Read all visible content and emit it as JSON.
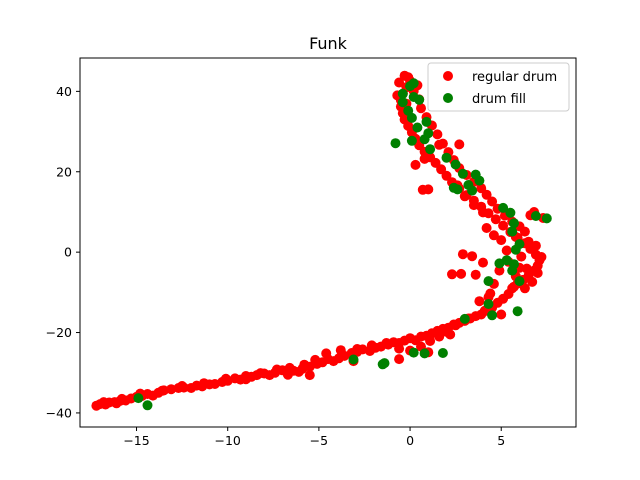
{
  "chart_data": {
    "type": "scatter",
    "title": "Funk",
    "xlabel": "",
    "ylabel": "",
    "xlim": [
      -18.1,
      9.1
    ],
    "ylim": [
      -43.5,
      48.3
    ],
    "x_ticks": [
      -15,
      -10,
      -5,
      0,
      5
    ],
    "y_ticks": [
      -40,
      -20,
      0,
      20,
      40
    ],
    "grid": false,
    "legend": {
      "position": "top-right",
      "entries": [
        "regular drum",
        "drum fill"
      ]
    },
    "series": [
      {
        "name": "regular drum",
        "color": "#ff0000",
        "points": [
          [
            -17.2,
            -38.2
          ],
          [
            -17.0,
            -37.8
          ],
          [
            -16.7,
            -37.9
          ],
          [
            -16.5,
            -37.4
          ],
          [
            -16.2,
            -37.3
          ],
          [
            -15.9,
            -37.0
          ],
          [
            -15.6,
            -36.9
          ],
          [
            -15.3,
            -36.4
          ],
          [
            -15.0,
            -36.0
          ],
          [
            -14.7,
            -35.8
          ],
          [
            -14.4,
            -35.3
          ],
          [
            -14.1,
            -35.7
          ],
          [
            -13.8,
            -35.0
          ],
          [
            -13.5,
            -34.4
          ],
          [
            -13.1,
            -34.1
          ],
          [
            -12.7,
            -33.8
          ],
          [
            -12.4,
            -33.7
          ],
          [
            -12.0,
            -33.8
          ],
          [
            -11.7,
            -33.2
          ],
          [
            -11.4,
            -33.4
          ],
          [
            -11.0,
            -32.9
          ],
          [
            -10.7,
            -32.8
          ],
          [
            -10.3,
            -32.3
          ],
          [
            -10.0,
            -32.0
          ],
          [
            -9.6,
            -31.4
          ],
          [
            -9.3,
            -31.7
          ],
          [
            -9.0,
            -30.8
          ],
          [
            -8.7,
            -31.0
          ],
          [
            -8.4,
            -30.6
          ],
          [
            -8.0,
            -30.2
          ],
          [
            -7.7,
            -30.6
          ],
          [
            -7.4,
            -30.0
          ],
          [
            -7.0,
            -29.4
          ],
          [
            -6.7,
            -30.5
          ],
          [
            -6.4,
            -29.5
          ],
          [
            -6.1,
            -29.8
          ],
          [
            -5.9,
            -29.0
          ],
          [
            -5.5,
            -28.5
          ],
          [
            -5.1,
            -27.8
          ],
          [
            -4.8,
            -27.4
          ],
          [
            -4.5,
            -26.6
          ],
          [
            -4.2,
            -27.1
          ],
          [
            -3.9,
            -26.4
          ],
          [
            -3.6,
            -25.8
          ],
          [
            -3.2,
            -25.1
          ],
          [
            -2.9,
            -24.8
          ],
          [
            -2.6,
            -24.2
          ],
          [
            -2.2,
            -24.6
          ],
          [
            -1.9,
            -23.8
          ],
          [
            -1.6,
            -23.5
          ],
          [
            -1.2,
            -23.0
          ],
          [
            -0.9,
            -22.4
          ],
          [
            -0.6,
            -22.6
          ],
          [
            -0.3,
            -22.0
          ],
          [
            0.0,
            -21.4
          ],
          [
            0.3,
            -21.9
          ],
          [
            0.6,
            -21.0
          ],
          [
            0.9,
            -20.8
          ],
          [
            1.2,
            -20.2
          ],
          [
            1.5,
            -19.6
          ],
          [
            1.8,
            -19.1
          ],
          [
            2.1,
            -18.8
          ],
          [
            2.4,
            -18.0
          ],
          [
            2.7,
            -17.6
          ],
          [
            3.0,
            -17.1
          ],
          [
            3.3,
            -16.5
          ],
          [
            3.6,
            -15.9
          ],
          [
            3.9,
            -15.5
          ],
          [
            4.2,
            -14.6
          ],
          [
            4.5,
            -13.8
          ],
          [
            4.8,
            -12.6
          ],
          [
            5.1,
            -11.6
          ],
          [
            5.4,
            -10.4
          ],
          [
            5.6,
            -9.0
          ],
          [
            5.9,
            -7.8
          ],
          [
            6.2,
            -6.9
          ],
          [
            6.5,
            -5.8
          ],
          [
            6.8,
            -4.6
          ],
          [
            7.0,
            -3.4
          ],
          [
            7.1,
            -2.0
          ],
          [
            6.9,
            -0.6
          ],
          [
            6.6,
            0.8
          ],
          [
            6.3,
            2.2
          ],
          [
            5.9,
            3.6
          ],
          [
            5.5,
            5.0
          ],
          [
            5.1,
            6.6
          ],
          [
            4.7,
            8.2
          ],
          [
            4.3,
            9.7
          ],
          [
            3.9,
            11.3
          ],
          [
            3.5,
            12.8
          ],
          [
            3.1,
            14.2
          ],
          [
            2.7,
            15.8
          ],
          [
            2.3,
            17.4
          ],
          [
            2.0,
            19.0
          ],
          [
            1.7,
            20.6
          ],
          [
            1.4,
            22.2
          ],
          [
            1.1,
            23.6
          ],
          [
            0.8,
            25.0
          ],
          [
            0.5,
            26.6
          ],
          [
            0.3,
            28.2
          ],
          [
            0.1,
            29.8
          ],
          [
            -0.1,
            31.4
          ],
          [
            -0.3,
            33.0
          ],
          [
            -0.4,
            34.6
          ],
          [
            -0.5,
            36.2
          ],
          [
            -0.5,
            37.8
          ],
          [
            -0.4,
            39.4
          ],
          [
            -0.2,
            41.0
          ],
          [
            0.0,
            42.6
          ],
          [
            -0.3,
            43.9
          ],
          [
            -0.1,
            43.5
          ],
          [
            -0.6,
            42.2
          ],
          [
            0.4,
            41.5
          ],
          [
            0.2,
            40.1
          ],
          [
            -0.7,
            39.0
          ],
          [
            0.5,
            38.0
          ],
          [
            -0.2,
            36.9
          ],
          [
            0.6,
            35.8
          ],
          [
            0.9,
            33.6
          ],
          [
            1.2,
            31.5
          ],
          [
            1.5,
            29.3
          ],
          [
            1.8,
            27.0
          ],
          [
            2.1,
            24.9
          ],
          [
            2.4,
            22.9
          ],
          [
            2.7,
            20.9
          ],
          [
            3.1,
            19.2
          ],
          [
            3.5,
            17.5
          ],
          [
            3.9,
            15.9
          ],
          [
            4.2,
            14.3
          ],
          [
            4.5,
            12.6
          ],
          [
            4.8,
            10.8
          ],
          [
            5.2,
            9.1
          ],
          [
            5.6,
            7.6
          ],
          [
            6.0,
            6.4
          ],
          [
            6.3,
            5.1
          ],
          [
            5.8,
            3.8
          ],
          [
            6.5,
            2.6
          ],
          [
            4.6,
            4.2
          ],
          [
            5.0,
            3.0
          ],
          [
            4.2,
            6.0
          ],
          [
            1.0,
            15.6
          ],
          [
            0.7,
            15.5
          ],
          [
            0.3,
            21.7
          ],
          [
            0.8,
            23.2
          ],
          [
            1.6,
            26.7
          ],
          [
            2.7,
            26.8
          ],
          [
            4.0,
            9.9
          ],
          [
            3.5,
            11.7
          ],
          [
            3.0,
            13.9
          ],
          [
            2.6,
            16.6
          ],
          [
            6.8,
            10.0
          ],
          [
            7.3,
            8.5
          ],
          [
            6.6,
            9.2
          ],
          [
            5.3,
            0.4
          ],
          [
            2.9,
            -0.5
          ],
          [
            3.4,
            -1.0
          ],
          [
            2.3,
            -5.5
          ],
          [
            3.6,
            -5.6
          ],
          [
            2.8,
            -5.4
          ],
          [
            4.0,
            -2.6
          ],
          [
            4.9,
            -4.6
          ],
          [
            6.0,
            -3.9
          ],
          [
            5.7,
            -8.6
          ],
          [
            4.4,
            -10.3
          ],
          [
            3.8,
            -12.2
          ],
          [
            4.1,
            -14.6
          ],
          [
            5.0,
            -15.5
          ],
          [
            3.2,
            -16.5
          ],
          [
            2.5,
            -18.2
          ],
          [
            2.0,
            -19.8
          ],
          [
            1.6,
            -21.0
          ],
          [
            1.1,
            -22.1
          ],
          [
            0.6,
            -23.5
          ],
          [
            0.0,
            -24.5
          ],
          [
            -0.6,
            -24.0
          ],
          [
            -1.3,
            -22.6
          ],
          [
            -2.1,
            -23.2
          ],
          [
            -2.9,
            -24.1
          ],
          [
            -3.8,
            -24.4
          ],
          [
            -4.6,
            -25.2
          ],
          [
            -5.2,
            -26.8
          ],
          [
            -5.8,
            -28.0
          ],
          [
            -6.6,
            -28.8
          ],
          [
            -7.3,
            -29.2
          ],
          [
            -8.2,
            -30.1
          ],
          [
            -9.0,
            -31.6
          ],
          [
            -10.1,
            -31.5
          ],
          [
            -11.3,
            -32.6
          ],
          [
            -12.5,
            -33.3
          ],
          [
            -13.6,
            -34.5
          ],
          [
            -14.8,
            -35.2
          ],
          [
            -15.8,
            -36.5
          ],
          [
            -16.8,
            -37.3
          ],
          [
            -16.1,
            -37.6
          ],
          [
            -5.5,
            -30.6
          ],
          [
            -3.1,
            -27.1
          ],
          [
            -0.6,
            -26.6
          ],
          [
            1.0,
            -24.9
          ],
          [
            2.2,
            -20.5
          ],
          [
            4.3,
            -11.2
          ],
          [
            6.3,
            -9.0
          ],
          [
            6.7,
            -7.4
          ],
          [
            7.0,
            -5.2
          ],
          [
            7.2,
            -1.2
          ],
          [
            6.9,
            1.6
          ],
          [
            6.1,
            -1.1
          ],
          [
            5.4,
            -2.4
          ],
          [
            6.4,
            -4.1
          ],
          [
            5.8,
            -6.0
          ],
          [
            4.6,
            -7.9
          ]
        ]
      },
      {
        "name": "drum fill",
        "color": "#008000",
        "points": [
          [
            -14.9,
            -36.3
          ],
          [
            -14.4,
            -38.1
          ],
          [
            -3.1,
            -26.7
          ],
          [
            -1.4,
            -27.6
          ],
          [
            -1.5,
            -27.9
          ],
          [
            0.2,
            -25.0
          ],
          [
            0.8,
            -25.2
          ],
          [
            1.8,
            -25.1
          ],
          [
            3.0,
            -16.6
          ],
          [
            4.5,
            -15.7
          ],
          [
            5.9,
            -14.7
          ],
          [
            4.3,
            -12.9
          ],
          [
            6.0,
            -7.2
          ],
          [
            4.3,
            -7.2
          ],
          [
            5.6,
            -4.6
          ],
          [
            5.7,
            -3.0
          ],
          [
            4.9,
            -2.8
          ],
          [
            5.3,
            -2.0
          ],
          [
            5.8,
            0.6
          ],
          [
            6.0,
            2.0
          ],
          [
            5.6,
            5.1
          ],
          [
            5.7,
            7.2
          ],
          [
            5.5,
            9.8
          ],
          [
            5.1,
            11.0
          ],
          [
            6.9,
            9.0
          ],
          [
            7.5,
            8.4
          ],
          [
            3.4,
            15.3
          ],
          [
            2.6,
            15.6
          ],
          [
            2.4,
            16.0
          ],
          [
            3.2,
            16.7
          ],
          [
            3.8,
            17.8
          ],
          [
            3.6,
            19.3
          ],
          [
            2.9,
            19.5
          ],
          [
            2.5,
            21.8
          ],
          [
            2.0,
            23.5
          ],
          [
            1.1,
            25.6
          ],
          [
            -0.8,
            27.1
          ],
          [
            0.1,
            27.7
          ],
          [
            0.8,
            28.1
          ],
          [
            1.0,
            29.6
          ],
          [
            0.4,
            31.0
          ],
          [
            0.9,
            32.4
          ],
          [
            0.1,
            33.4
          ],
          [
            -0.1,
            35.2
          ],
          [
            -0.4,
            37.3
          ],
          [
            -0.4,
            39.4
          ],
          [
            0.2,
            38.6
          ],
          [
            0.5,
            37.9
          ],
          [
            0.0,
            41.3
          ],
          [
            0.2,
            42.0
          ]
        ]
      }
    ]
  }
}
